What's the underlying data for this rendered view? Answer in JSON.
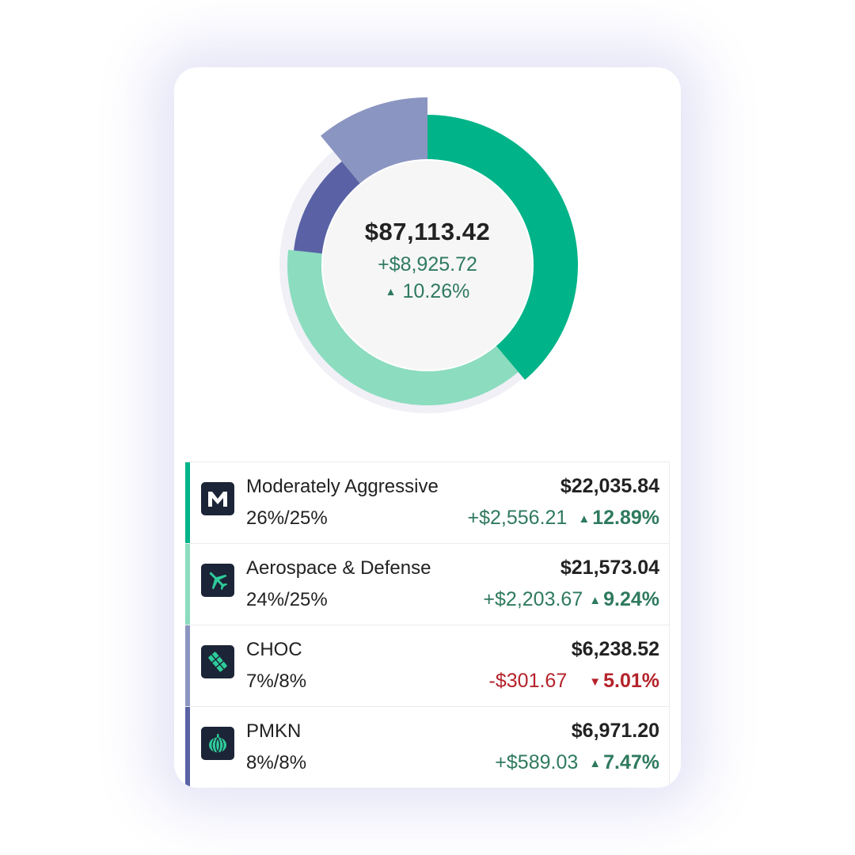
{
  "summary": {
    "total_value": "$87,113.42",
    "total_gain": "+$8,925.72",
    "total_gain_pct": "10.26%",
    "direction": "up"
  },
  "chart_data": {
    "type": "pie",
    "subtype": "donut",
    "categories": [
      "Moderately Aggressive",
      "Aerospace & Defense",
      "CHOC",
      "PMKN"
    ],
    "values": [
      22035.84,
      21573.04,
      6238.52,
      6971.2
    ],
    "segment_colors": [
      "#00b388",
      "#8cdcbf",
      "#8b95c1",
      "#5a62a5"
    ]
  },
  "holdings": [
    {
      "name": "Moderately Aggressive",
      "allocation": "26%/25%",
      "value": "$22,035.84",
      "gain": "+$2,556.21",
      "gain_pct": "12.89%",
      "direction": "up",
      "icon": "m-logo-icon",
      "color": "#00b388"
    },
    {
      "name": "Aerospace & Defense",
      "allocation": "24%/25%",
      "value": "$21,573.04",
      "gain": "+$2,203.67",
      "gain_pct": "9.24%",
      "direction": "up",
      "icon": "airplane-icon",
      "color": "#8cdcbf"
    },
    {
      "name": "CHOC",
      "allocation": "7%/8%",
      "value": "$6,238.52",
      "gain": "-$301.67",
      "gain_pct": "5.01%",
      "direction": "down",
      "icon": "chocolate-bar-icon",
      "color": "#8b95c1"
    },
    {
      "name": "PMKN",
      "allocation": "8%/8%",
      "value": "$6,971.20",
      "gain": "+$589.03",
      "gain_pct": "7.47%",
      "direction": "up",
      "icon": "pumpkin-icon",
      "color": "#5a62a5"
    }
  ],
  "colors": {
    "positive": "#2f7a5e",
    "negative": "#b5222a",
    "icon_bg": "#1c2437",
    "icon_accent": "#2ecc9a"
  }
}
